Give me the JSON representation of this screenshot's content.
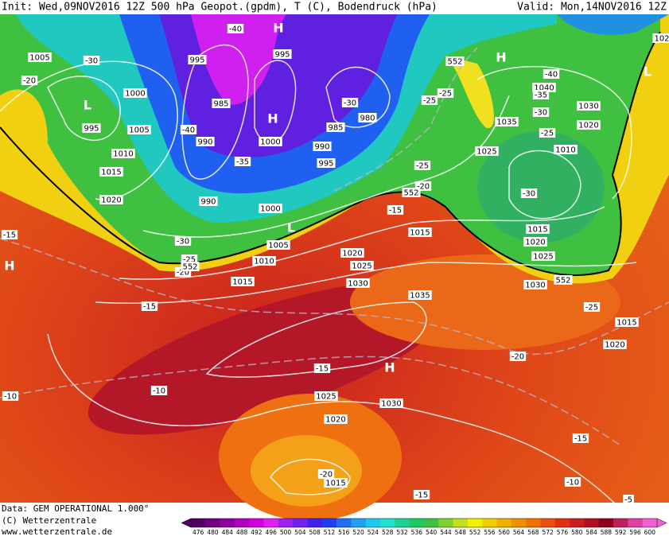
{
  "header": {
    "init": "Init: Wed,09NOV2016 12Z 500 hPa Geopot.(gpdm), T (C), Bodendruck (hPa)",
    "valid": "Valid: Mon,14NOV2016 12Z"
  },
  "footer": {
    "data": "Data: GEM OPERATIONAL 1.000°",
    "copyright": "(C) Wetterzentrale",
    "url": "www.wetterzentrale.de"
  },
  "map": {
    "pressure_labels": [
      1005,
      1000,
      995,
      1005,
      1010,
      1015,
      1020,
      995,
      985,
      990,
      995,
      1000,
      990,
      995,
      985,
      980,
      990,
      1000,
      1005,
      1010,
      1015,
      1020,
      1025,
      1030,
      1035,
      1015,
      1040,
      1030,
      1035,
      1020,
      1025,
      1010,
      1015,
      1020,
      1025,
      1030,
      1015,
      1020,
      1025,
      1030,
      1020,
      1015,
      102
    ],
    "temperature_labels": [
      -30,
      -20,
      -40,
      -40,
      -35,
      -30,
      -25,
      -25,
      -25,
      -20,
      -15,
      -40,
      -35,
      -30,
      -25,
      -30,
      -15,
      -30,
      -25,
      -20,
      -15,
      -15,
      -10,
      -10,
      -20,
      -25,
      -15,
      -10,
      -15,
      -20,
      -5
    ],
    "geopotential_labels": [
      552,
      552,
      552,
      552
    ],
    "centers": [
      "H",
      "H",
      "L",
      "H",
      "L",
      "L",
      "H",
      "H"
    ]
  },
  "legend": {
    "labels": [
      476,
      480,
      484,
      488,
      492,
      496,
      500,
      504,
      508,
      512,
      516,
      520,
      524,
      528,
      532,
      536,
      540,
      544,
      548,
      552,
      556,
      560,
      564,
      568,
      572,
      576,
      580,
      584,
      588,
      592,
      596,
      600
    ],
    "colors": [
      "#500060",
      "#700080",
      "#9000a0",
      "#b000c0",
      "#d000e0",
      "#e020f0",
      "#a020f0",
      "#7020f0",
      "#4020f0",
      "#2040f0",
      "#2070f0",
      "#20a0f0",
      "#20c8f0",
      "#20e0d0",
      "#20d090",
      "#20c860",
      "#40c040",
      "#80d030",
      "#c0e020",
      "#f0f000",
      "#f0d000",
      "#f0b000",
      "#f09000",
      "#f07000",
      "#e85010",
      "#e03010",
      "#c82020",
      "#b01020",
      "#900020",
      "#c02060",
      "#e040a0",
      "#f060d0"
    ]
  }
}
